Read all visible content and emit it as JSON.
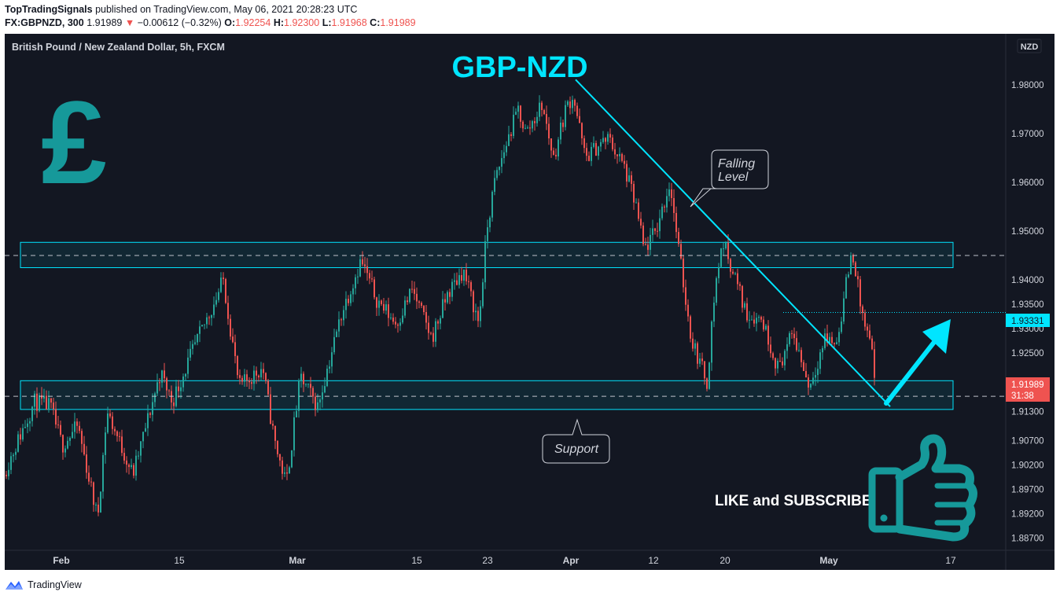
{
  "header": {
    "publisher": "TopTradingSignals",
    "published_text": "published on TradingView.com, May 06, 2021 20:28:23 UTC",
    "symbol_interval": "FX:GBPNZD, 300",
    "last": "1.91989",
    "change_arrow": "▼",
    "change": "−0.00612 (−0.32%)",
    "o_label": "O:",
    "o_value": "1.92254",
    "h_label": "H:",
    "h_value": "1.92300",
    "l_label": "L:",
    "l_value": "1.91968",
    "c_label": "C:",
    "c_value": "1.91989"
  },
  "pane_title": "British Pound / New Zealand Dollar, 5h, FXCM",
  "currency_badge": "NZD",
  "annotations": {
    "headline": "GBP-NZD",
    "falling_level_line1": "Falling",
    "falling_level_line2": "Level",
    "support": "Support",
    "cta": "LIKE and SUBSCRIBE",
    "currency_symbol": "£"
  },
  "price_labels": {
    "dotted_level": "1.93331",
    "last_price": "1.91989",
    "countdown": "31:38"
  },
  "footer": {
    "brand": "TradingView"
  },
  "colors": {
    "background": "#131722",
    "up_candle": "#26a69a",
    "down_candle": "#ef5350",
    "accent": "#00e5ff",
    "teal_icon": "#16999a"
  },
  "chart_data": {
    "type": "candlestick",
    "symbol": "GBPNZD",
    "timeframe": "5h",
    "x_ticks": [
      "Feb",
      "15",
      "Mar",
      "15",
      "23",
      "Apr",
      "12",
      "20",
      "May",
      "17"
    ],
    "y_ticks": [
      "1.98000",
      "1.97000",
      "1.96000",
      "1.95000",
      "1.94000",
      "1.93500",
      "1.93000",
      "1.92500",
      "1.91300",
      "1.90700",
      "1.90200",
      "1.89700",
      "1.89200",
      "1.88700"
    ],
    "ylim": [
      1.8845,
      1.9905
    ],
    "price_path": [
      [
        0,
        1.9
      ],
      [
        40,
        1.915
      ],
      [
        60,
        1.914
      ],
      [
        75,
        1.906
      ],
      [
        95,
        1.91
      ],
      [
        120,
        1.891
      ],
      [
        132,
        1.913
      ],
      [
        165,
        1.9
      ],
      [
        200,
        1.921
      ],
      [
        215,
        1.915
      ],
      [
        240,
        1.925
      ],
      [
        270,
        1.936
      ],
      [
        280,
        1.94
      ],
      [
        300,
        1.918
      ],
      [
        330,
        1.922
      ],
      [
        345,
        1.907
      ],
      [
        360,
        1.898
      ],
      [
        378,
        1.92
      ],
      [
        400,
        1.914
      ],
      [
        430,
        1.933
      ],
      [
        455,
        1.944
      ],
      [
        475,
        1.936
      ],
      [
        500,
        1.931
      ],
      [
        520,
        1.938
      ],
      [
        545,
        1.928
      ],
      [
        565,
        1.937
      ],
      [
        585,
        1.942
      ],
      [
        605,
        1.931
      ],
      [
        615,
        1.95
      ],
      [
        625,
        1.96
      ],
      [
        640,
        1.968
      ],
      [
        655,
        1.975
      ],
      [
        665,
        1.97
      ],
      [
        685,
        1.976
      ],
      [
        700,
        1.965
      ],
      [
        715,
        1.975
      ],
      [
        725,
        1.978
      ],
      [
        740,
        1.965
      ],
      [
        760,
        1.968
      ],
      [
        770,
        1.969
      ],
      [
        790,
        1.963
      ],
      [
        805,
        1.955
      ],
      [
        815,
        1.946
      ],
      [
        830,
        1.95
      ],
      [
        848,
        1.96
      ],
      [
        860,
        1.945
      ],
      [
        875,
        1.928
      ],
      [
        895,
        1.919
      ],
      [
        905,
        1.938
      ],
      [
        915,
        1.948
      ],
      [
        930,
        1.941
      ],
      [
        945,
        1.933
      ],
      [
        965,
        1.932
      ],
      [
        985,
        1.922
      ],
      [
        1005,
        1.929
      ],
      [
        1025,
        1.918
      ],
      [
        1045,
        1.928
      ],
      [
        1060,
        1.927
      ],
      [
        1075,
        1.942
      ],
      [
        1080,
        1.946
      ],
      [
        1092,
        1.933
      ],
      [
        1105,
        1.925
      ],
      [
        1112,
        1.92
      ]
    ],
    "zones": [
      {
        "label": "resistance",
        "top": 1.9477,
        "bottom": 1.9425
      },
      {
        "label": "support",
        "top": 1.9193,
        "bottom": 1.9134
      }
    ],
    "dashed_levels": [
      1.945,
      1.9161
    ],
    "dotted_level": 1.93331,
    "last_price": 1.91989,
    "trendline": {
      "from": {
        "x": 726,
        "y": 1.9811
      },
      "to": {
        "x": 1126,
        "y": 1.914
      }
    }
  }
}
